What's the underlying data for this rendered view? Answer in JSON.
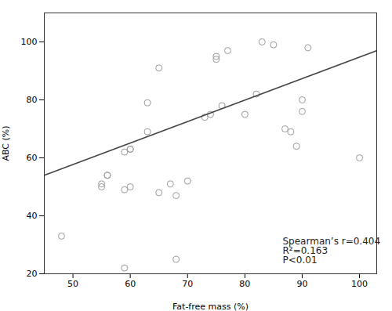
{
  "chart_data": {
    "type": "scatter",
    "xlabel": "Fat-free mass (%)",
    "ylabel": "ABC (%)",
    "xlim": [
      45,
      103
    ],
    "ylim": [
      20,
      110
    ],
    "xticks": [
      50,
      60,
      70,
      80,
      90,
      100
    ],
    "yticks": [
      20,
      40,
      60,
      80,
      100
    ],
    "grid": false,
    "series": [
      {
        "type": "scatter",
        "color": "#999999",
        "marker": "circle",
        "x": [
          48,
          55,
          55,
          56,
          56,
          59,
          59,
          59,
          60,
          60,
          60,
          63,
          63,
          65,
          65,
          67,
          68,
          68,
          70,
          73,
          74,
          75,
          75,
          76,
          77,
          80,
          82,
          83,
          85,
          87,
          88,
          89,
          90,
          90,
          91,
          100
        ],
        "values": [
          33,
          50,
          51,
          54,
          54,
          22,
          49,
          62,
          63,
          63,
          50,
          69,
          79,
          48,
          91,
          51,
          47,
          25,
          52,
          74,
          75,
          94,
          95,
          78,
          97,
          75,
          82,
          100,
          99,
          70,
          69,
          64,
          76,
          80,
          98,
          60
        ]
      },
      {
        "type": "line",
        "color": "#444444",
        "line_style": "solid",
        "x": [
          45,
          103
        ],
        "values": [
          54.0,
          96.978
        ]
      }
    ],
    "annotations": [
      "Spearman’s r=0.404",
      "R²=0.163",
      "P<0.01"
    ]
  }
}
